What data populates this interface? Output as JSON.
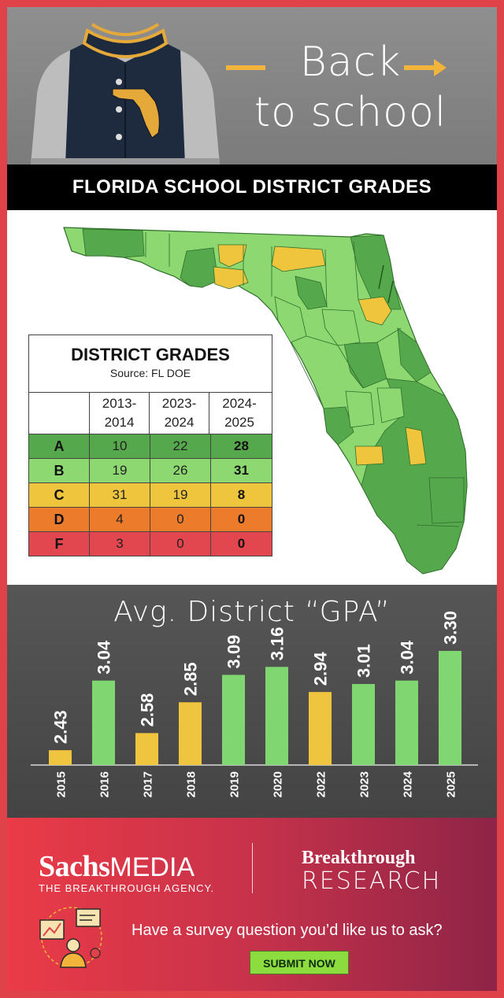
{
  "hero": {
    "line1": "Back",
    "line2": "to school"
  },
  "banner_title": "FLORIDA SCHOOL DISTRICT GRADES",
  "grades_table": {
    "title": "DISTRICT GRADES",
    "source": "Source: FL DOE",
    "years": [
      {
        "top": "2013-",
        "bottom": "2014"
      },
      {
        "top": "2023-",
        "bottom": "2024"
      },
      {
        "top": "2024-",
        "bottom": "2025"
      }
    ],
    "rows": [
      {
        "grade": "A",
        "values": [
          "10",
          "22",
          "28"
        ],
        "color": "#56a84c"
      },
      {
        "grade": "B",
        "values": [
          "19",
          "26",
          "31"
        ],
        "color": "#8ed872"
      },
      {
        "grade": "C",
        "values": [
          "31",
          "19",
          "8"
        ],
        "color": "#f0c53e"
      },
      {
        "grade": "D",
        "values": [
          "4",
          "0",
          "0"
        ],
        "color": "#ec7b2c"
      },
      {
        "grade": "F",
        "values": [
          "3",
          "0",
          "0"
        ],
        "color": "#e2464e"
      }
    ]
  },
  "chart_data": {
    "type": "bar",
    "title": "Avg. District “GPA”",
    "categories": [
      "2015",
      "2016",
      "2017",
      "2018",
      "2019",
      "2020",
      "2022",
      "2023",
      "2024",
      "2025"
    ],
    "values": [
      2.43,
      3.04,
      2.58,
      2.85,
      3.09,
      3.16,
      2.94,
      3.01,
      3.04,
      3.3
    ],
    "value_labels": [
      "2.43",
      "3.04",
      "2.58",
      "2.85",
      "3.09",
      "3.16",
      "2.94",
      "3.01",
      "3.04",
      "3.30"
    ],
    "bar_colors": [
      "#efc43e",
      "#80d670",
      "#efc43e",
      "#efc43e",
      "#80d670",
      "#80d670",
      "#efc43e",
      "#80d670",
      "#80d670",
      "#80d670"
    ],
    "baseline": 2.3,
    "ylim": [
      2.3,
      3.3
    ],
    "grid": false
  },
  "footer": {
    "sachs": "Sachs",
    "media": "MEDIA",
    "tagline": "THE BREAKTHROUGH AGENCY.",
    "breakthrough": "Breakthrough",
    "research": "RESEARCH",
    "cta": "Have a survey question you’d like us to ask?",
    "submit_label": "SUBMIT NOW"
  },
  "colors": {
    "frame": "#e0424a",
    "map_a": "#56a84c",
    "map_b": "#8ed872",
    "map_c": "#f0c53e"
  },
  "icons": [
    "varsity-jacket-icon",
    "florida-map-icon",
    "survey-research-icon",
    "arrow-right-icon"
  ]
}
